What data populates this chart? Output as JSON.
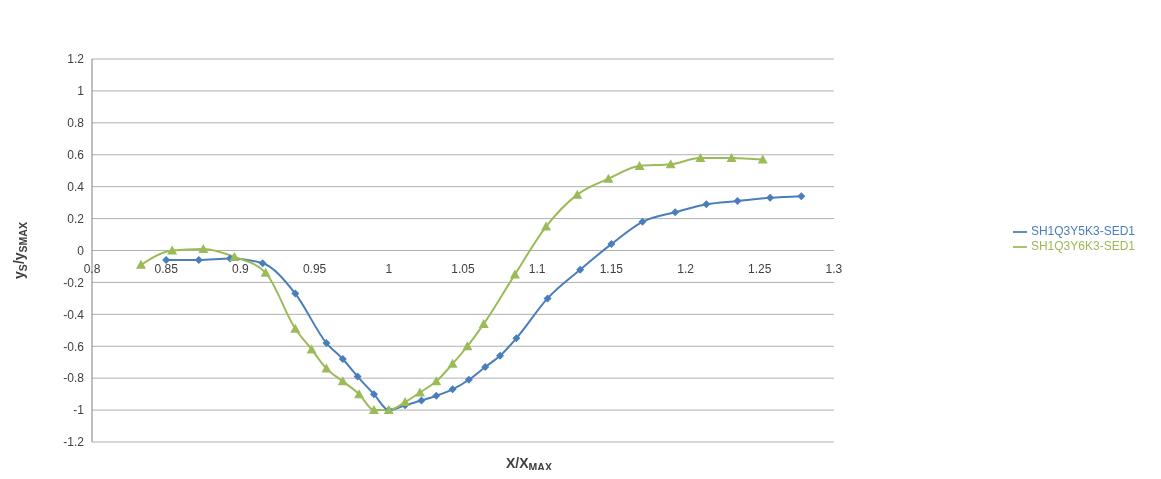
{
  "chart_data": {
    "type": "line",
    "xlabel": "X/X$_{MAX}$",
    "ylabel": "y$_{S}$/y$_{SMAX}$",
    "xlim": [
      0.8,
      1.3
    ],
    "xticks": [
      0.8,
      0.85,
      0.9,
      0.95,
      1,
      1.05,
      1.1,
      1.15,
      1.2,
      1.25,
      1.3
    ],
    "ylim": [
      -1.2,
      1.2
    ],
    "yticks": [
      -1.2,
      -1,
      -0.8,
      -0.6,
      -0.4,
      -0.2,
      0,
      0.2,
      0.4,
      0.6,
      0.8,
      1,
      1.2
    ],
    "grid": "y",
    "legend": "right",
    "line_style": "solid",
    "series": [
      {
        "name": "SH1Q3Y5K3-SED1",
        "color": "#4a7ebb",
        "marker": "diamond",
        "x": [
          0.85,
          0.872,
          0.893,
          0.915,
          0.937,
          0.958,
          0.969,
          0.979,
          0.99,
          1.0,
          1.011,
          1.022,
          1.032,
          1.043,
          1.054,
          1.065,
          1.075,
          1.086,
          1.107,
          1.129,
          1.15,
          1.171,
          1.193,
          1.214,
          1.235,
          1.257,
          1.278
        ],
        "values": [
          -0.06,
          -0.06,
          -0.05,
          -0.08,
          -0.27,
          -0.58,
          -0.68,
          -0.79,
          -0.9,
          -1.0,
          -0.97,
          -0.94,
          -0.91,
          -0.87,
          -0.81,
          -0.73,
          -0.66,
          -0.55,
          -0.3,
          -0.12,
          0.04,
          0.18,
          0.24,
          0.29,
          0.31,
          0.33,
          0.34
        ]
      },
      {
        "name": "SH1Q3Y6K3-SED1",
        "color": "#9bbb59",
        "marker": "triangle",
        "x": [
          0.833,
          0.854,
          0.875,
          0.896,
          0.917,
          0.937,
          0.948,
          0.958,
          0.969,
          0.98,
          0.99,
          1.0,
          1.011,
          1.021,
          1.032,
          1.043,
          1.053,
          1.064,
          1.085,
          1.106,
          1.127,
          1.148,
          1.169,
          1.19,
          1.21,
          1.231,
          1.252
        ],
        "values": [
          -0.09,
          0.0,
          0.01,
          -0.04,
          -0.14,
          -0.49,
          -0.62,
          -0.74,
          -0.82,
          -0.9,
          -1.0,
          -1.0,
          -0.95,
          -0.89,
          -0.82,
          -0.71,
          -0.6,
          -0.46,
          -0.15,
          0.15,
          0.35,
          0.45,
          0.53,
          0.54,
          0.58,
          0.58,
          0.57
        ]
      }
    ]
  }
}
